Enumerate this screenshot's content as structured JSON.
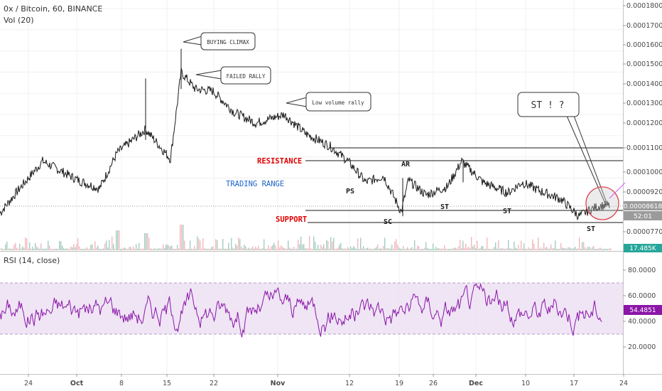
{
  "header": {
    "symbol_line": "0x / Bitcoin, 60, BINANCE",
    "volume_label": "Vol (20)",
    "rsi_label": "RSI (14, close)"
  },
  "price_axis": {
    "ticks": [
      "0.00018000",
      "0.00017000",
      "0.00016000",
      "0.00015000",
      "0.00014000",
      "0.00013000",
      "0.00012000",
      "0.00011000",
      "0.00010000",
      "0.00009200",
      "0.00008618",
      "0.00007700"
    ],
    "last_price": "0.00008618",
    "countdown": "52:01",
    "volume_badge": "17.485K"
  },
  "rsi_axis": {
    "ticks": [
      "80.0000",
      "60.0000",
      "40.0000",
      "20.0000"
    ],
    "last_value": "54.4851",
    "overbought": 70,
    "oversold": 30,
    "ylim": [
      0,
      100
    ]
  },
  "x_axis": {
    "labels": [
      {
        "text": "24",
        "bold": false
      },
      {
        "text": "Oct",
        "bold": true
      },
      {
        "text": "8",
        "bold": false
      },
      {
        "text": "15",
        "bold": false
      },
      {
        "text": "22",
        "bold": false
      },
      {
        "text": "Nov",
        "bold": true
      },
      {
        "text": "12",
        "bold": false
      },
      {
        "text": "19",
        "bold": false
      },
      {
        "text": "26",
        "bold": false
      },
      {
        "text": "Dec",
        "bold": true
      },
      {
        "text": "10",
        "bold": false
      },
      {
        "text": "17",
        "bold": false
      },
      {
        "text": "24",
        "bold": false
      }
    ]
  },
  "annotations": {
    "callouts": [
      "BUYING CLIMAX",
      "FAILED RALLY",
      "Low volume rally",
      "ST ! ?"
    ],
    "labels": [
      "RESISTANCE",
      "SUPPORT",
      "TRADING RANGE",
      "PS",
      "SC",
      "AR",
      "ST",
      "ST",
      "ST"
    ]
  },
  "colors": {
    "price_line": "#1a1a1a",
    "volume_up": "#7fb7a5",
    "volume_down": "#eb9aa0",
    "rsi_line": "#8b16a8",
    "rsi_band": "#e9dcf2",
    "rsi_badge": "#8b16a8",
    "resistance": "#e00000",
    "support": "#e00000",
    "trading_range": "#1b64c8",
    "price_badge": "#9b9b9b",
    "volume_badge": "#26a69a",
    "circle_stroke": "#e04050",
    "circle_fill": "#c8c8c8",
    "trend_line": "#d36cf0"
  },
  "chart_data": [
    {
      "type": "line",
      "title": "0x / Bitcoin, 60, BINANCE",
      "x": [
        "24",
        "Oct",
        "8",
        "15",
        "22",
        "Nov",
        "12",
        "19",
        "26",
        "Dec",
        "10",
        "17"
      ],
      "series": [
        {
          "values": [
            8.35e-05,
            0.00011,
            0.000105,
            0.000124,
            0.000143,
            0.000126,
            0.000108,
            8.9e-05,
            0.0001,
            9.8e-05,
            9e-05,
            8.5e-05
          ]
        }
      ],
      "ylim": [
        7.2e-05,
        0.000182
      ]
    },
    {
      "type": "line",
      "title": "RSI (14, close)",
      "x": [
        "24",
        "Oct",
        "8",
        "15",
        "22",
        "Nov",
        "12",
        "19",
        "26",
        "Dec",
        "10",
        "17"
      ],
      "series": [
        {
          "values": [
            52,
            58,
            47,
            63,
            55,
            48,
            44,
            41,
            56,
            50,
            47,
            54.49
          ]
        }
      ],
      "ylim": [
        0,
        100
      ]
    }
  ]
}
